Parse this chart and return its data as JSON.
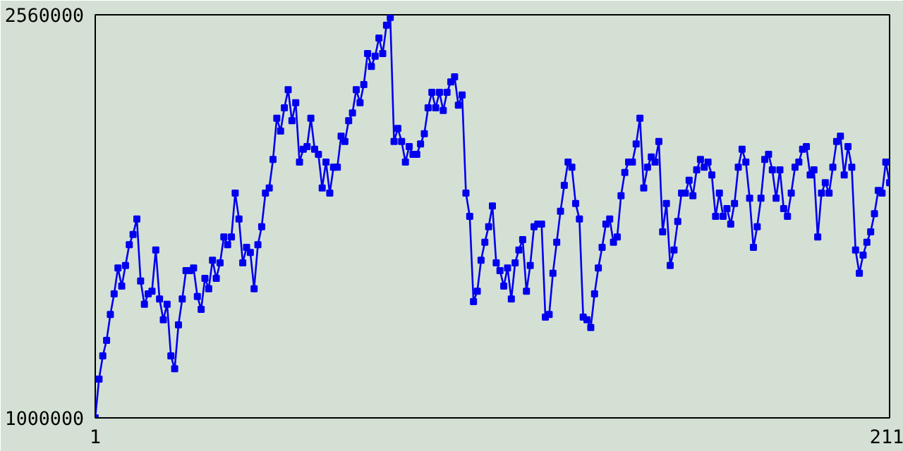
{
  "chart_data": {
    "type": "line",
    "marker": "square",
    "line_style": "solid",
    "xlim": [
      1,
      211
    ],
    "xticks": [
      1,
      211
    ],
    "ylim": [
      1000000,
      2560000
    ],
    "yticks": [
      1000000,
      2560000
    ],
    "x": [
      1,
      2,
      3,
      4,
      5,
      6,
      7,
      8,
      9,
      10,
      11,
      12,
      13,
      14,
      15,
      16,
      17,
      18,
      19,
      20,
      21,
      22,
      23,
      24,
      25,
      26,
      27,
      28,
      29,
      30,
      31,
      32,
      33,
      34,
      35,
      36,
      37,
      38,
      39,
      40,
      41,
      42,
      43,
      44,
      45,
      46,
      47,
      48,
      49,
      50,
      51,
      52,
      53,
      54,
      55,
      56,
      57,
      58,
      59,
      60,
      61,
      62,
      63,
      64,
      65,
      66,
      67,
      68,
      69,
      70,
      71,
      72,
      73,
      74,
      75,
      76,
      77,
      78,
      79,
      80,
      81,
      82,
      83,
      84,
      85,
      86,
      87,
      88,
      89,
      90,
      91,
      92,
      93,
      94,
      95,
      96,
      97,
      98,
      99,
      100,
      101,
      102,
      103,
      104,
      105,
      106,
      107,
      108,
      109,
      110,
      111,
      112,
      113,
      114,
      115,
      116,
      117,
      118,
      119,
      120,
      121,
      122,
      123,
      124,
      125,
      126,
      127,
      128,
      129,
      130,
      131,
      132,
      133,
      134,
      135,
      136,
      137,
      138,
      139,
      140,
      141,
      142,
      143,
      144,
      145,
      146,
      147,
      148,
      149,
      150,
      151,
      152,
      153,
      154,
      155,
      156,
      157,
      158,
      159,
      160,
      161,
      162,
      163,
      164,
      165,
      166,
      167,
      168,
      169,
      170,
      171,
      172,
      173,
      174,
      175,
      176,
      177,
      178,
      179,
      180,
      181,
      182,
      183,
      184,
      185,
      186,
      187,
      188,
      189,
      190,
      191,
      192,
      193,
      194,
      195,
      196,
      197,
      198,
      199,
      200,
      201,
      202,
      203,
      204,
      205,
      206,
      207,
      208,
      209,
      210,
      211
    ],
    "series": [
      {
        "color": "#0000ee",
        "values": [
          1000000,
          1150000,
          1240000,
          1300000,
          1400000,
          1480000,
          1580000,
          1510000,
          1590000,
          1670000,
          1710000,
          1770000,
          1530000,
          1440000,
          1480000,
          1490000,
          1650000,
          1460000,
          1380000,
          1440000,
          1240000,
          1190000,
          1360000,
          1460000,
          1570000,
          1570000,
          1580000,
          1470000,
          1420000,
          1540000,
          1500000,
          1610000,
          1540000,
          1600000,
          1700000,
          1670000,
          1700000,
          1870000,
          1770000,
          1600000,
          1660000,
          1640000,
          1500000,
          1670000,
          1740000,
          1870000,
          1890000,
          2000000,
          2160000,
          2110000,
          2200000,
          2270000,
          2150000,
          2220000,
          1990000,
          2040000,
          2050000,
          2160000,
          2040000,
          2020000,
          1890000,
          1990000,
          1870000,
          1970000,
          1970000,
          2090000,
          2070000,
          2150000,
          2180000,
          2270000,
          2220000,
          2290000,
          2410000,
          2360000,
          2400000,
          2470000,
          2410000,
          2520000,
          2550000,
          2070000,
          2120000,
          2070000,
          1990000,
          2050000,
          2020000,
          2020000,
          2060000,
          2100000,
          2200000,
          2260000,
          2200000,
          2260000,
          2190000,
          2260000,
          2300000,
          2320000,
          2210000,
          2250000,
          1870000,
          1780000,
          1450000,
          1490000,
          1610000,
          1680000,
          1740000,
          1820000,
          1600000,
          1570000,
          1510000,
          1580000,
          1460000,
          1600000,
          1650000,
          1690000,
          1490000,
          1590000,
          1740000,
          1750000,
          1750000,
          1390000,
          1400000,
          1560000,
          1680000,
          1800000,
          1900000,
          1990000,
          1970000,
          1830000,
          1770000,
          1390000,
          1380000,
          1350000,
          1480000,
          1580000,
          1660000,
          1750000,
          1770000,
          1680000,
          1700000,
          1860000,
          1950000,
          1990000,
          1990000,
          2060000,
          2160000,
          1890000,
          1970000,
          2010000,
          1990000,
          2070000,
          1720000,
          1830000,
          1590000,
          1650000,
          1760000,
          1870000,
          1870000,
          1920000,
          1860000,
          1960000,
          2000000,
          1970000,
          1990000,
          1940000,
          1780000,
          1870000,
          1780000,
          1810000,
          1750000,
          1830000,
          1970000,
          2040000,
          1990000,
          1850000,
          1660000,
          1740000,
          1850000,
          2000000,
          2020000,
          1960000,
          1850000,
          1960000,
          1810000,
          1780000,
          1870000,
          1970000,
          1990000,
          2040000,
          2050000,
          1940000,
          1960000,
          1700000,
          1870000,
          1910000,
          1870000,
          1970000,
          2070000,
          2090000,
          1940000,
          2050000,
          1970000,
          1650000,
          1560000,
          1630000,
          1680000,
          1720000,
          1790000,
          1880000,
          1870000,
          1990000,
          1910000
        ]
      }
    ]
  }
}
